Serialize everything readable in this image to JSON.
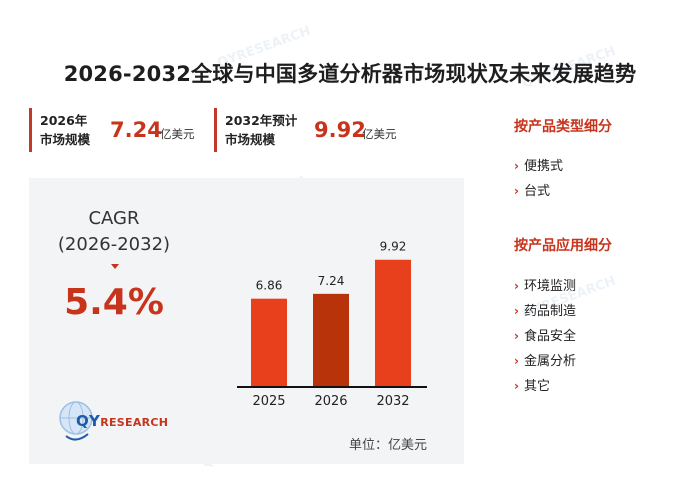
{
  "title": "2026-2032全球与中国多道分析器市场现状及未来发展趋势",
  "stats": [
    {
      "label_line1": "2026年",
      "label_line2": "市场规模",
      "value": "7.24",
      "unit": "亿美元"
    },
    {
      "label_line1": "2032年预计",
      "label_line2": "市场规模",
      "value": "9.92",
      "unit": "亿美元"
    }
  ],
  "cagr": {
    "label": "CAGR",
    "period": "(2026-2032)",
    "value": "5.4%"
  },
  "unit_note": "单位：亿美元",
  "logo": {
    "prefix": "QY",
    "suffix": "RESEARCH"
  },
  "colors": {
    "accent": "#c8331c",
    "bar": "#e8401c",
    "bar_highlight": "#b8320a",
    "panel": "#f3f4f6"
  },
  "sidebar": {
    "sections": [
      {
        "heading": "按产品类型细分",
        "items": [
          "便携式",
          "台式"
        ]
      },
      {
        "heading": "按产品应用细分",
        "items": [
          "环境监测",
          "药品制造",
          "食品安全",
          "金属分析",
          "其它"
        ]
      }
    ]
  },
  "chart_data": {
    "type": "bar",
    "categories": [
      "2025",
      "2026",
      "2032"
    ],
    "values": [
      6.86,
      7.24,
      9.92
    ],
    "value_labels": [
      "6.86",
      "7.24",
      "9.92"
    ],
    "highlight_index": 1,
    "ylim": [
      0,
      11
    ],
    "title": "",
    "xlabel": "",
    "ylabel": "",
    "grid": false,
    "legend": "none"
  }
}
